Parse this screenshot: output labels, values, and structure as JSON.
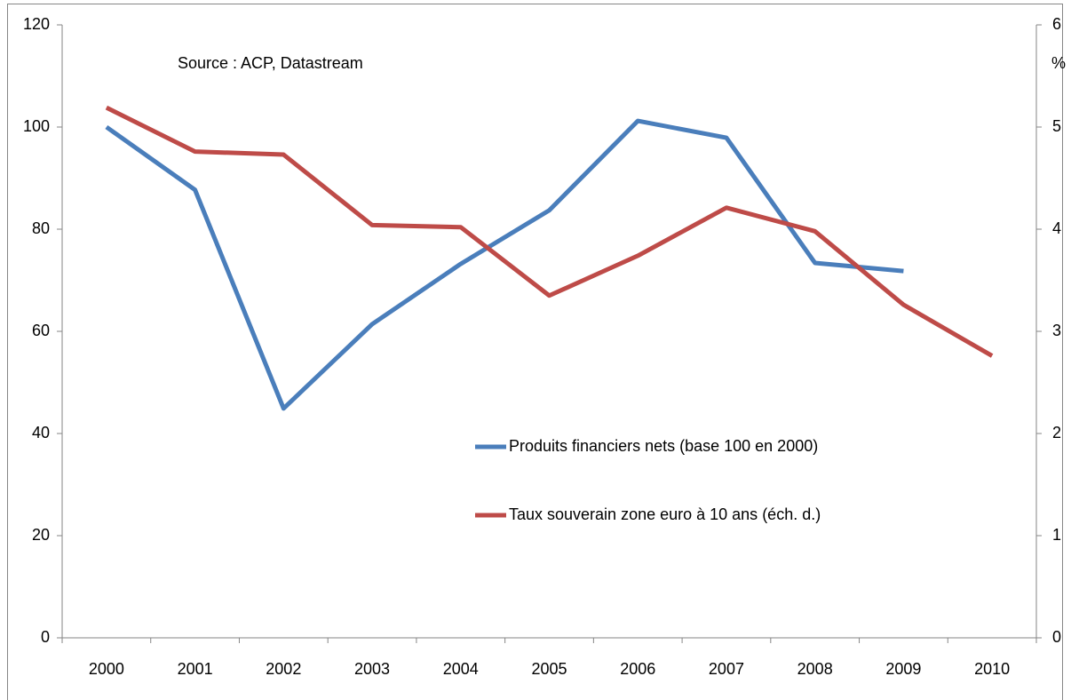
{
  "chart_data": {
    "type": "line",
    "annotation": "Source : ACP, Datastream",
    "y2_label": "%",
    "categories": [
      "2000",
      "2001",
      "2002",
      "2003",
      "2004",
      "2005",
      "2006",
      "2007",
      "2008",
      "2009",
      "2010"
    ],
    "series": [
      {
        "name": "Produits financiers nets (base 100 en 2000)",
        "color": "#4a7ebb",
        "values": [
          100,
          87.7,
          44.9,
          61.4,
          73.2,
          83.7,
          101.2,
          97.9,
          73.4,
          71.8,
          null
        ]
      },
      {
        "name": "Taux souverain zone euro à 10 ans (éch. d.)",
        "color": "#be4b48",
        "axis": "y2",
        "values": [
          5.19,
          4.76,
          4.73,
          4.04,
          4.02,
          3.35,
          3.74,
          4.21,
          3.98,
          3.26,
          2.76
        ]
      }
    ],
    "ylim": [
      0,
      120
    ],
    "yticks": [
      0,
      20,
      40,
      60,
      80,
      100,
      120
    ],
    "y2lim": [
      0,
      6
    ],
    "y2ticks": [
      0,
      1,
      2,
      3,
      4,
      5,
      6
    ],
    "grid": false
  }
}
